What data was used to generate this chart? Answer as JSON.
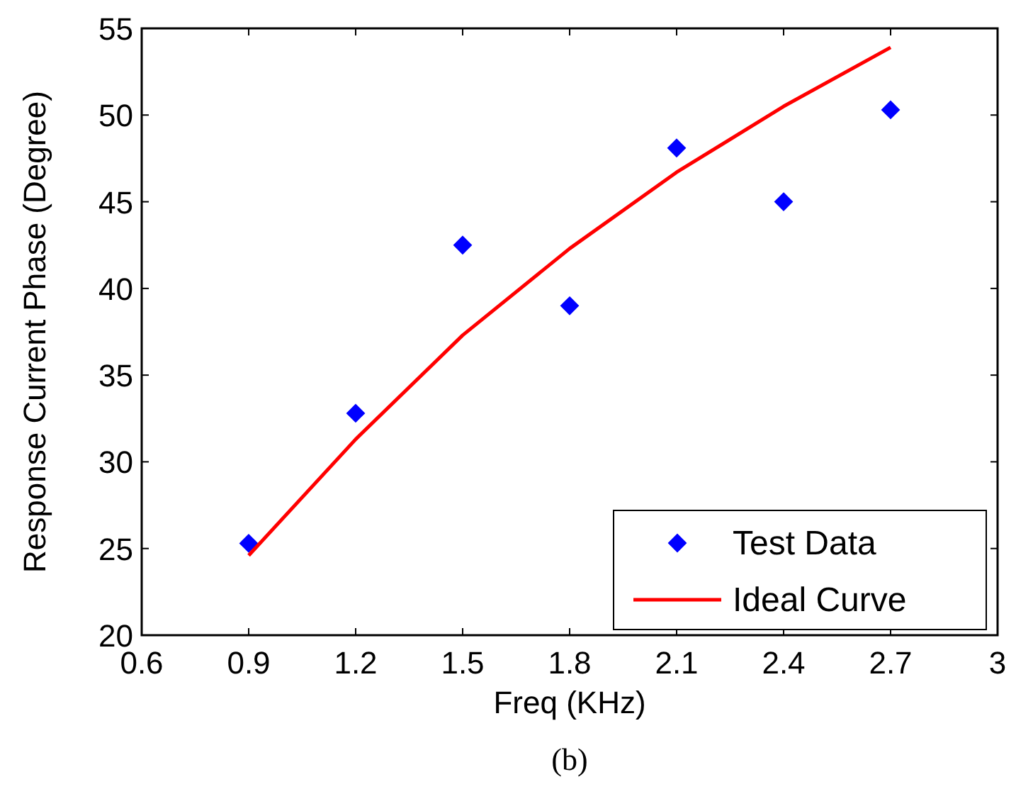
{
  "chart_data": {
    "type": "scatter",
    "xlabel": "Freq (KHz)",
    "ylabel": "Response Current Phase (Degree)",
    "x": [
      0.9,
      1.2,
      1.5,
      1.8,
      2.1,
      2.4,
      2.7
    ],
    "series": [
      {
        "name": "Test Data",
        "type": "scatter",
        "color": "#0000ff",
        "marker": "diamond",
        "values": [
          25.3,
          32.8,
          42.5,
          39.0,
          48.1,
          45.0,
          50.3
        ]
      },
      {
        "name": "Ideal Curve",
        "type": "line",
        "color": "#ff0000",
        "line_style": "solid",
        "values": [
          24.6,
          31.3,
          37.3,
          42.3,
          46.7,
          50.5,
          53.9
        ]
      }
    ],
    "xlim": [
      0.6,
      3
    ],
    "xticks": [
      {
        "value": 0.6,
        "label": "0.6"
      },
      {
        "value": 0.9,
        "label": "0.9"
      },
      {
        "value": 1.2,
        "label": "1.2"
      },
      {
        "value": 1.5,
        "label": "1.5"
      },
      {
        "value": 1.8,
        "label": "1.8"
      },
      {
        "value": 2.1,
        "label": "2.1"
      },
      {
        "value": 2.4,
        "label": "2.4"
      },
      {
        "value": 2.7,
        "label": "2.7"
      },
      3
    ],
    "ylim": [
      20,
      55
    ],
    "yticks": [
      20,
      25,
      30,
      35,
      40,
      45,
      50,
      55
    ],
    "legend": "bottom right",
    "grid": false,
    "annotations": [
      "(b)"
    ]
  }
}
